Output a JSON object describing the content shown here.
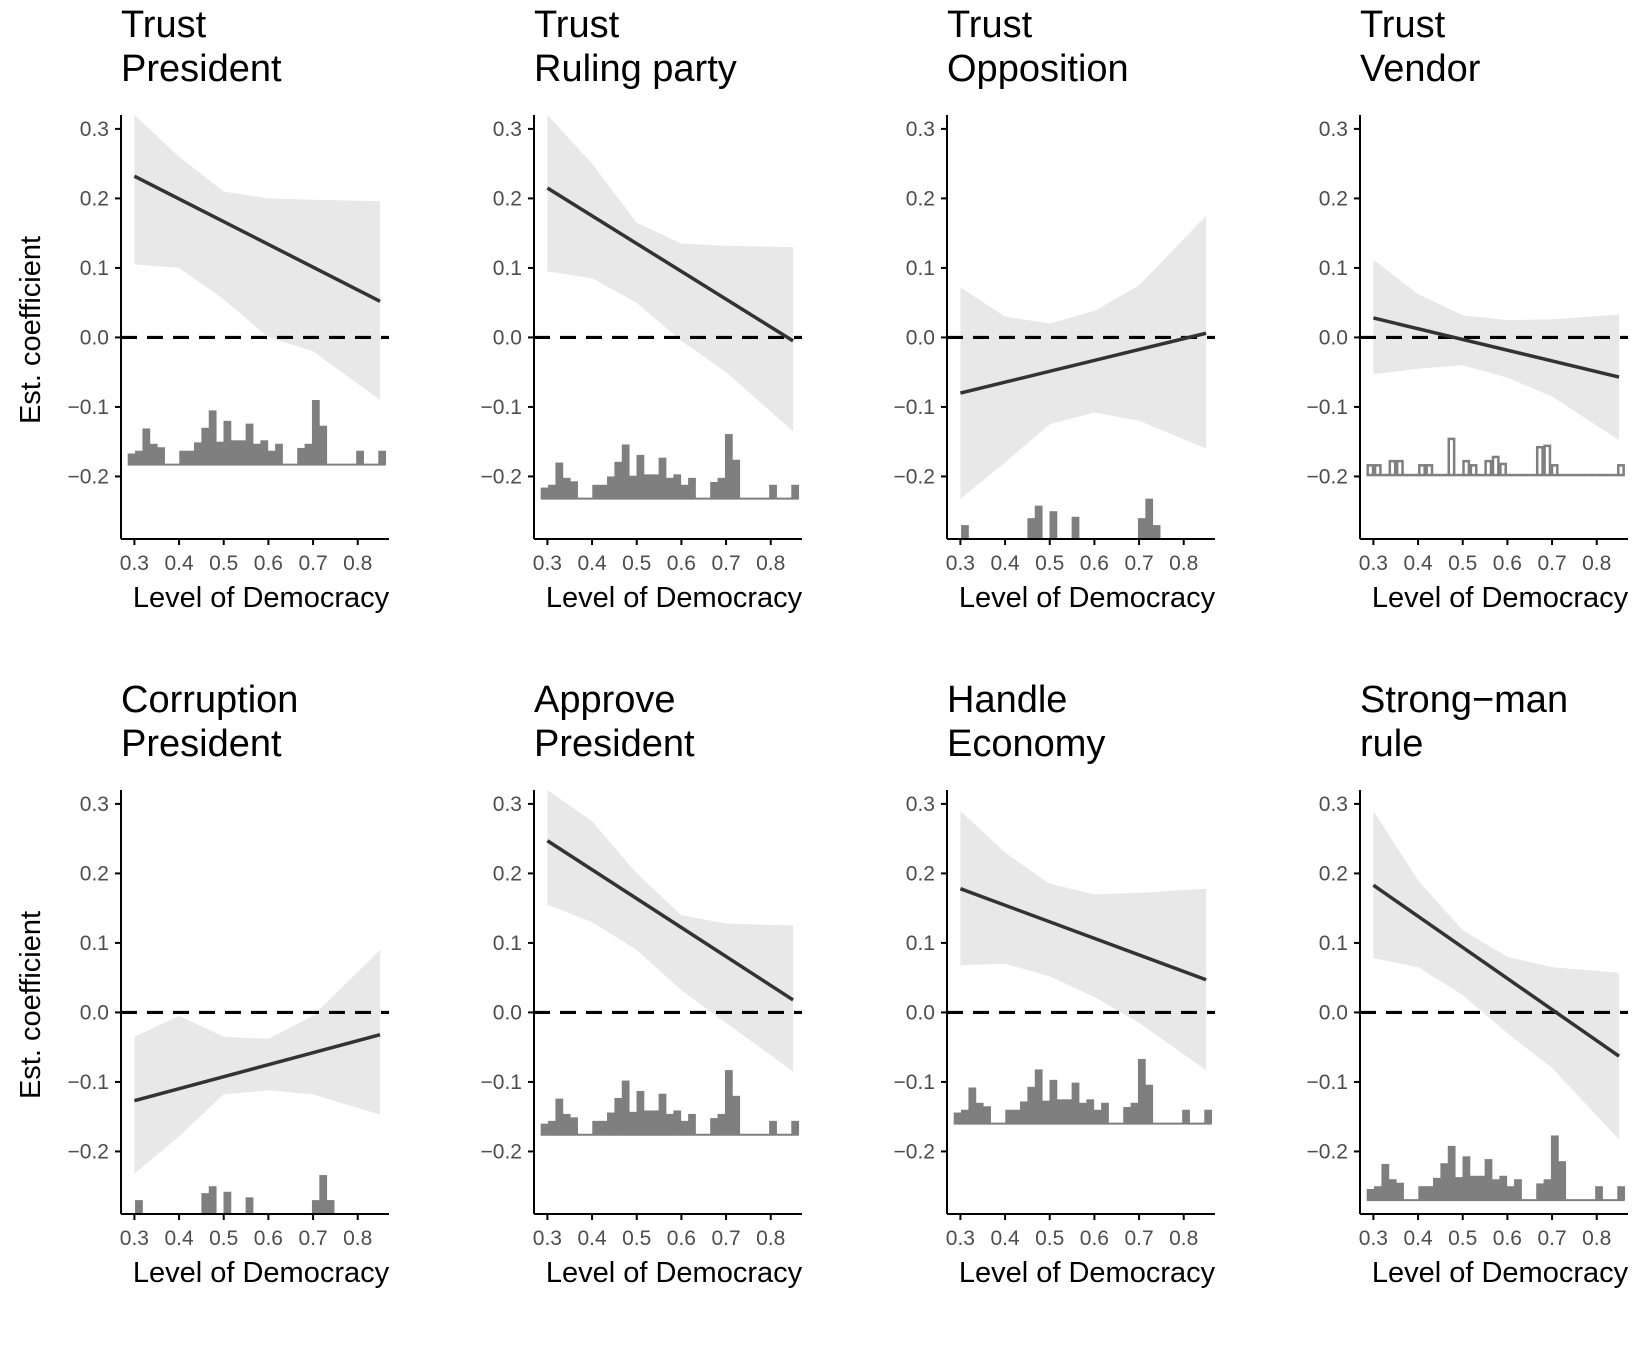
{
  "figure": {
    "xlabel": "Level of Democracy",
    "ylabel": "Est. coefficient",
    "xticks": [
      "0.3",
      "0.4",
      "0.5",
      "0.6",
      "0.7",
      "0.8"
    ],
    "yticks": [
      "0.3",
      "0.2",
      "0.1",
      "0.0",
      "−0.1",
      "−0.2"
    ]
  },
  "colors": {
    "line": "#333333",
    "ribbon": "#e8e8e8",
    "bars": "#7f7f7f",
    "axis": "#000000",
    "tick_text": "#4d4d4d"
  },
  "chart_data": [
    {
      "type": "line",
      "title": [
        "Trust",
        "President"
      ],
      "xlim": [
        0.27,
        0.87
      ],
      "ylim": [
        -0.29,
        0.32
      ],
      "x": [
        0.3,
        0.85
      ],
      "y": [
        0.232,
        0.052
      ],
      "ci_x": [
        0.3,
        0.4,
        0.5,
        0.6,
        0.7,
        0.85
      ],
      "ci_lower": [
        0.105,
        0.1,
        0.055,
        0.0,
        -0.02,
        -0.09
      ],
      "ci_upper": [
        0.32,
        0.26,
        0.21,
        0.2,
        0.198,
        0.196
      ],
      "reference_line": 0.0,
      "hist_style": "filled",
      "hist_baseline": -0.183,
      "hist_heights": [
        0.016,
        0.02,
        0.052,
        0.03,
        0.025,
        0.0,
        0.0,
        0.02,
        0.02,
        0.032,
        0.053,
        0.078,
        0.033,
        0.063,
        0.035,
        0.035,
        0.059,
        0.03,
        0.035,
        0.02,
        0.03,
        0.0,
        0.0,
        0.024,
        0.03,
        0.093,
        0.056,
        0.0,
        0.0,
        0.0,
        0.0,
        0.02,
        0.0,
        0.0,
        0.02
      ]
    },
    {
      "type": "line",
      "title": [
        "Trust",
        "Ruling party"
      ],
      "xlim": [
        0.27,
        0.87
      ],
      "ylim": [
        -0.29,
        0.32
      ],
      "x": [
        0.3,
        0.85
      ],
      "y": [
        0.215,
        -0.005
      ],
      "ci_x": [
        0.3,
        0.4,
        0.5,
        0.6,
        0.7,
        0.85
      ],
      "ci_lower": [
        0.095,
        0.085,
        0.05,
        -0.005,
        -0.05,
        -0.135
      ],
      "ci_upper": [
        0.32,
        0.25,
        0.165,
        0.135,
        0.132,
        0.13
      ],
      "reference_line": 0.0,
      "hist_style": "filled",
      "hist_baseline": -0.232,
      "hist_heights": [
        0.016,
        0.02,
        0.052,
        0.03,
        0.025,
        0.0,
        0.0,
        0.02,
        0.02,
        0.032,
        0.053,
        0.078,
        0.033,
        0.063,
        0.035,
        0.035,
        0.059,
        0.03,
        0.035,
        0.02,
        0.03,
        0.0,
        0.0,
        0.024,
        0.03,
        0.093,
        0.056,
        0.0,
        0.0,
        0.0,
        0.0,
        0.02,
        0.0,
        0.0,
        0.02
      ]
    },
    {
      "type": "line",
      "title": [
        "Trust",
        "Opposition"
      ],
      "xlim": [
        0.27,
        0.87
      ],
      "ylim": [
        -0.29,
        0.32
      ],
      "x": [
        0.3,
        0.85
      ],
      "y": [
        -0.08,
        0.006
      ],
      "ci_x": [
        0.3,
        0.4,
        0.5,
        0.6,
        0.7,
        0.85
      ],
      "ci_lower": [
        -0.232,
        -0.18,
        -0.125,
        -0.108,
        -0.12,
        -0.16
      ],
      "ci_upper": [
        0.072,
        0.03,
        0.02,
        0.038,
        0.075,
        0.175
      ],
      "reference_line": 0.0,
      "hist_style": "filled",
      "hist_baseline": -0.29,
      "hist_heights": [
        0.0,
        0.02,
        0.0,
        0.0,
        0.0,
        0.0,
        0.0,
        0.0,
        0.0,
        0.0,
        0.03,
        0.048,
        0.0,
        0.04,
        0.0,
        0.0,
        0.032,
        0.0,
        0.0,
        0.0,
        0.0,
        0.0,
        0.0,
        0.0,
        0.0,
        0.03,
        0.058,
        0.02,
        0.0,
        0.0,
        0.0,
        0.0,
        0.0,
        0.0,
        0.0
      ]
    },
    {
      "type": "line",
      "title": [
        "Trust",
        "Vendor"
      ],
      "xlim": [
        0.27,
        0.87
      ],
      "ylim": [
        -0.29,
        0.32
      ],
      "x": [
        0.3,
        0.85
      ],
      "y": [
        0.028,
        -0.057
      ],
      "ci_x": [
        0.3,
        0.4,
        0.5,
        0.6,
        0.7,
        0.85
      ],
      "ci_lower": [
        -0.053,
        -0.045,
        -0.04,
        -0.058,
        -0.085,
        -0.148
      ],
      "ci_upper": [
        0.112,
        0.062,
        0.032,
        0.025,
        0.026,
        0.033
      ],
      "reference_line": 0.0,
      "hist_style": "outline",
      "hist_baseline": -0.198,
      "hist_heights": [
        0.014,
        0.014,
        0.0,
        0.02,
        0.02,
        0.0,
        0.0,
        0.014,
        0.014,
        0.0,
        0.0,
        0.052,
        0.0,
        0.02,
        0.014,
        0.0,
        0.02,
        0.026,
        0.016,
        0.0,
        0.0,
        0.0,
        0.0,
        0.04,
        0.042,
        0.014,
        0.0,
        0.0,
        0.0,
        0.0,
        0.0,
        0.0,
        0.0,
        0.0,
        0.014
      ]
    },
    {
      "type": "line",
      "title": [
        "Corruption",
        "President"
      ],
      "xlim": [
        0.27,
        0.87
      ],
      "ylim": [
        -0.29,
        0.32
      ],
      "x": [
        0.3,
        0.85
      ],
      "y": [
        -0.127,
        -0.032
      ],
      "ci_x": [
        0.3,
        0.4,
        0.5,
        0.6,
        0.7,
        0.85
      ],
      "ci_lower": [
        -0.232,
        -0.178,
        -0.118,
        -0.112,
        -0.118,
        -0.147
      ],
      "ci_upper": [
        -0.035,
        -0.005,
        -0.035,
        -0.038,
        -0.005,
        0.09
      ],
      "reference_line": 0.0,
      "hist_style": "filled",
      "hist_baseline": -0.29,
      "hist_heights": [
        0.0,
        0.02,
        0.0,
        0.0,
        0.0,
        0.0,
        0.0,
        0.0,
        0.0,
        0.0,
        0.03,
        0.04,
        0.0,
        0.032,
        0.0,
        0.0,
        0.024,
        0.0,
        0.0,
        0.0,
        0.0,
        0.0,
        0.0,
        0.0,
        0.0,
        0.02,
        0.056,
        0.02,
        0.0,
        0.0,
        0.0,
        0.0,
        0.0,
        0.0,
        0.0
      ]
    },
    {
      "type": "line",
      "title": [
        "Approve",
        "President"
      ],
      "xlim": [
        0.27,
        0.87
      ],
      "ylim": [
        -0.29,
        0.32
      ],
      "x": [
        0.3,
        0.85
      ],
      "y": [
        0.247,
        0.018
      ],
      "ci_x": [
        0.3,
        0.4,
        0.5,
        0.6,
        0.7,
        0.85
      ],
      "ci_lower": [
        0.155,
        0.13,
        0.09,
        0.032,
        -0.015,
        -0.085
      ],
      "ci_upper": [
        0.32,
        0.275,
        0.2,
        0.14,
        0.128,
        0.125
      ],
      "reference_line": 0.0,
      "hist_style": "filled",
      "hist_baseline": -0.176,
      "hist_heights": [
        0.016,
        0.02,
        0.052,
        0.03,
        0.025,
        0.0,
        0.0,
        0.02,
        0.02,
        0.032,
        0.053,
        0.078,
        0.033,
        0.063,
        0.035,
        0.035,
        0.059,
        0.03,
        0.035,
        0.02,
        0.03,
        0.0,
        0.0,
        0.024,
        0.03,
        0.093,
        0.056,
        0.0,
        0.0,
        0.0,
        0.0,
        0.02,
        0.0,
        0.0,
        0.02
      ]
    },
    {
      "type": "line",
      "title": [
        "Handle",
        "Economy"
      ],
      "xlim": [
        0.27,
        0.87
      ],
      "ylim": [
        -0.29,
        0.32
      ],
      "x": [
        0.3,
        0.85
      ],
      "y": [
        0.178,
        0.047
      ],
      "ci_x": [
        0.3,
        0.4,
        0.5,
        0.6,
        0.7,
        0.85
      ],
      "ci_lower": [
        0.068,
        0.07,
        0.052,
        0.022,
        -0.015,
        -0.083
      ],
      "ci_upper": [
        0.29,
        0.23,
        0.185,
        0.17,
        0.172,
        0.178
      ],
      "reference_line": 0.0,
      "hist_style": "filled",
      "hist_baseline": -0.16,
      "hist_heights": [
        0.016,
        0.02,
        0.052,
        0.03,
        0.025,
        0.0,
        0.0,
        0.02,
        0.02,
        0.032,
        0.053,
        0.078,
        0.033,
        0.063,
        0.035,
        0.035,
        0.059,
        0.03,
        0.035,
        0.02,
        0.03,
        0.0,
        0.0,
        0.024,
        0.03,
        0.093,
        0.056,
        0.0,
        0.0,
        0.0,
        0.0,
        0.02,
        0.0,
        0.0,
        0.02
      ]
    },
    {
      "type": "line",
      "title": [
        "Strong−man",
        "rule"
      ],
      "xlim": [
        0.27,
        0.87
      ],
      "ylim": [
        -0.29,
        0.32
      ],
      "x": [
        0.3,
        0.85
      ],
      "y": [
        0.183,
        -0.063
      ],
      "ci_x": [
        0.3,
        0.4,
        0.5,
        0.6,
        0.7,
        0.85
      ],
      "ci_lower": [
        0.078,
        0.065,
        0.025,
        -0.03,
        -0.08,
        -0.183
      ],
      "ci_upper": [
        0.29,
        0.19,
        0.118,
        0.08,
        0.065,
        0.057
      ],
      "reference_line": 0.0,
      "hist_style": "filled",
      "hist_baseline": -0.27,
      "hist_heights": [
        0.016,
        0.02,
        0.052,
        0.03,
        0.025,
        0.0,
        0.0,
        0.02,
        0.02,
        0.032,
        0.053,
        0.078,
        0.033,
        0.063,
        0.035,
        0.035,
        0.059,
        0.03,
        0.035,
        0.02,
        0.03,
        0.0,
        0.0,
        0.024,
        0.03,
        0.093,
        0.056,
        0.0,
        0.0,
        0.0,
        0.0,
        0.02,
        0.0,
        0.0,
        0.02
      ]
    }
  ]
}
